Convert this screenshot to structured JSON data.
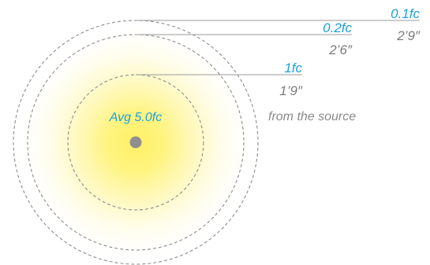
{
  "diagram": {
    "average_label": "Avg 5.0fc",
    "source_note": "from the source",
    "rings": [
      {
        "illuminance": "0.1fc",
        "distance": "2’9″"
      },
      {
        "illuminance": "0.2fc",
        "distance": "2’6″"
      },
      {
        "illuminance": "1fc",
        "distance": "1’9″"
      }
    ],
    "colors": {
      "glow": "#fff176",
      "ring_stroke": "#8c8c8c",
      "leader_line": "#9a9a9a",
      "illuminance_text": "#1aa0e0",
      "distance_text": "#7b7b7b",
      "source_dot": "#8e8e8e"
    }
  }
}
